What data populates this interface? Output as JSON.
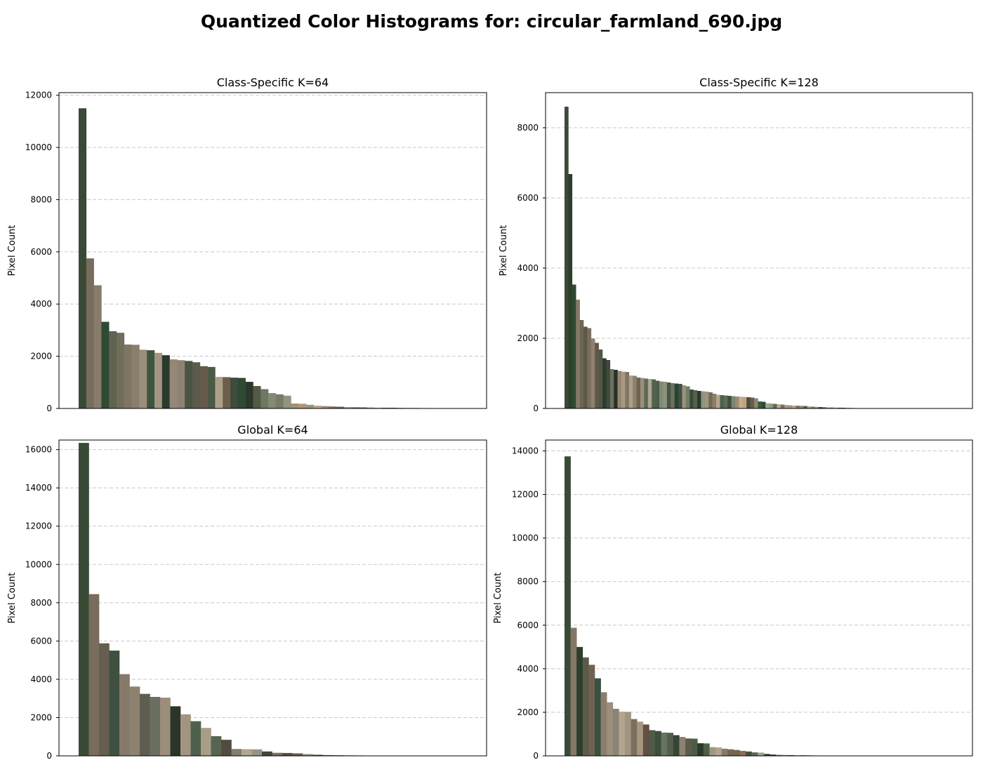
{
  "suptitle": "Quantized Color Histograms for: circular_farmland_690.jpg",
  "chart_data": [
    {
      "type": "bar",
      "title": "Class-Specific K=64",
      "ylabel": "Pixel Count",
      "ylim": [
        0,
        12100
      ],
      "yticks": [
        0,
        2000,
        4000,
        6000,
        8000,
        10000,
        12000
      ],
      "grid": "y, dashed",
      "values": [
        11500,
        5750,
        4720,
        3320,
        2960,
        2900,
        2450,
        2440,
        2250,
        2230,
        2130,
        2040,
        1880,
        1850,
        1820,
        1770,
        1620,
        1590,
        1210,
        1200,
        1180,
        1170,
        1020,
        860,
        740,
        590,
        540,
        490,
        190,
        180,
        140,
        110,
        90,
        75,
        65,
        55,
        45,
        40,
        35,
        30,
        28,
        25,
        22,
        20,
        18,
        15,
        12,
        10
      ],
      "colors": [
        "#394a36",
        "#786c5c",
        "#877b69",
        "#2f4a33",
        "#5f6350",
        "#6e6e5a",
        "#807565",
        "#8a7f6f",
        "#9c8e7a",
        "#3d553e",
        "#a29581",
        "#2a3a2c",
        "#958878",
        "#8f8272",
        "#4a5442",
        "#5b5b4b",
        "#675a4b",
        "#4b5a46",
        "#ada089",
        "#6d5e4c",
        "#3f4c3b",
        "#2f4a33",
        "#2d362b",
        "#535945",
        "#6b7862",
        "#828b74",
        "#7a7a68",
        "#8e9580",
        "#a48f76",
        "#b09678",
        "#8c9a84",
        "#c0a886",
        "#9a8a74",
        "#7c6f5d",
        "#5d6650",
        "#a69a86",
        "#6b6553",
        "#4f5c48",
        "#8a8674",
        "#b7ab94",
        "#59604c",
        "#2c3a2c",
        "#756d5b",
        "#99907c",
        "#48503f",
        "#a1937c",
        "#6a705d",
        "#3a4434"
      ]
    },
    {
      "type": "bar",
      "title": "Class-Specific K=128",
      "ylabel": "Pixel Count",
      "ylim": [
        0,
        9000
      ],
      "yticks": [
        0,
        2000,
        4000,
        6000,
        8000
      ],
      "grid": "y, dashed",
      "values": [
        8600,
        6680,
        3530,
        3100,
        2520,
        2330,
        2290,
        1990,
        1870,
        1680,
        1430,
        1380,
        1120,
        1100,
        1070,
        1050,
        1040,
        940,
        930,
        880,
        870,
        850,
        840,
        830,
        790,
        770,
        760,
        740,
        720,
        710,
        700,
        660,
        630,
        540,
        520,
        500,
        490,
        480,
        460,
        420,
        390,
        380,
        370,
        360,
        350,
        340,
        335,
        330,
        320,
        310,
        290,
        200,
        190,
        150,
        140,
        130,
        120,
        110,
        100,
        90,
        85,
        80,
        75,
        70,
        60,
        50,
        45,
        40,
        35,
        30,
        28,
        25,
        22,
        20,
        18,
        15,
        12,
        10,
        8,
        6
      ],
      "colors": [
        "#3a4a35",
        "#2e3e2c",
        "#2c4a2f",
        "#857866",
        "#6e6555",
        "#5c5a48",
        "#7a6e5e",
        "#8e8170",
        "#635648",
        "#4d5944",
        "#2f3a2d",
        "#3e4b3a",
        "#6a7160",
        "#2a3228",
        "#968772",
        "#a79a85",
        "#827461",
        "#ad9f88",
        "#8a8170",
        "#71624f",
        "#9a8e7c",
        "#5a6a54",
        "#b0a48f",
        "#536150",
        "#4c5d49",
        "#7f8a73",
        "#8e937e",
        "#4b5446",
        "#69735e",
        "#2e4232",
        "#3b5141",
        "#a18f7a",
        "#6c7f66",
        "#3a4c38",
        "#56604d",
        "#2d3a2b",
        "#8a9784",
        "#a0957f",
        "#746957",
        "#8c7e68",
        "#b3a68f",
        "#4d6149",
        "#5b6d56",
        "#3f4f3c",
        "#7d8470",
        "#9b8b73",
        "#c1ad8d",
        "#c4a27e",
        "#4b4c3e",
        "#665d4c",
        "#8d866f",
        "#3b5a40",
        "#2d4a32",
        "#a0a894",
        "#8b9a86",
        "#5c6c56",
        "#b4ab96",
        "#7b6f5a",
        "#9fa28e",
        "#a3937a",
        "#c1a57f",
        "#6f7c68",
        "#8a8e7a",
        "#555a48",
        "#b7a48b",
        "#6b8067",
        "#909c86",
        "#3e4e3c",
        "#5e6a58",
        "#a49b88",
        "#7e8572",
        "#c5b095",
        "#4f5a48",
        "#30402f",
        "#9c9482",
        "#8f7f68",
        "#bcaa8e",
        "#6c6653",
        "#a8a08c",
        "#5a5442"
      ]
    },
    {
      "type": "bar",
      "title": "Global K=64",
      "ylabel": "Pixel Count",
      "ylim": [
        0,
        16500
      ],
      "yticks": [
        0,
        2000,
        4000,
        6000,
        8000,
        10000,
        12000,
        14000,
        16000
      ],
      "grid": "y, dashed",
      "values": [
        16350,
        8450,
        5880,
        5500,
        4270,
        3620,
        3240,
        3080,
        3040,
        2590,
        2170,
        1810,
        1460,
        1030,
        840,
        360,
        350,
        340,
        230,
        160,
        150,
        130,
        90,
        55,
        40,
        30,
        25,
        22,
        18,
        15
      ],
      "colors": [
        "#394a36",
        "#786c5c",
        "#665e50",
        "#3e5140",
        "#87796a",
        "#8c826f",
        "#5e5e50",
        "#6b6f62",
        "#9c8d78",
        "#2a3528",
        "#a29580",
        "#4f614c",
        "#a89e86",
        "#566450",
        "#524c40",
        "#847e6f",
        "#b3a58e",
        "#989484",
        "#3e473a",
        "#7c6b58",
        "#5e4a3e",
        "#6a5848",
        "#8c8a76",
        "#3a4434",
        "#5a6250",
        "#2f3d2e",
        "#4e5646",
        "#7a7562",
        "#a8a390",
        "#363a2f"
      ]
    },
    {
      "type": "bar",
      "title": "Global K=128",
      "ylabel": "Pixel Count",
      "ylim": [
        0,
        14500
      ],
      "yticks": [
        0,
        2000,
        4000,
        6000,
        8000,
        10000,
        12000,
        14000
      ],
      "grid": "y, dashed",
      "values": [
        13750,
        5880,
        5000,
        4520,
        4180,
        3560,
        2920,
        2460,
        2160,
        2030,
        2020,
        1690,
        1570,
        1440,
        1180,
        1140,
        1070,
        1060,
        950,
        870,
        800,
        790,
        580,
        570,
        400,
        390,
        330,
        300,
        270,
        230,
        200,
        160,
        150,
        90,
        60,
        45,
        40,
        35,
        30,
        28,
        22,
        18
      ],
      "colors": [
        "#394a36",
        "#857766",
        "#2e3e2c",
        "#5c5a4a",
        "#6f6252",
        "#3a5240",
        "#8c7e6c",
        "#9c8f7b",
        "#8a8474",
        "#b4a68e",
        "#a0967f",
        "#7d6f5d",
        "#a6977f",
        "#624f44",
        "#4f5a48",
        "#3e4e3c",
        "#66735e",
        "#535e4c",
        "#3a4434",
        "#8d8270",
        "#5e5b4d",
        "#4a5e45",
        "#2d3a2b",
        "#4e5e49",
        "#a19683",
        "#b2a38c",
        "#857b68",
        "#6f6856",
        "#78624c",
        "#8d6e54",
        "#44513f",
        "#5b6a57",
        "#a0a38f",
        "#3a4534",
        "#2e382c",
        "#6d6a58",
        "#8c9280",
        "#4a4d3f",
        "#b0a28b",
        "#5e5443",
        "#36402f",
        "#7b7766"
      ]
    }
  ]
}
